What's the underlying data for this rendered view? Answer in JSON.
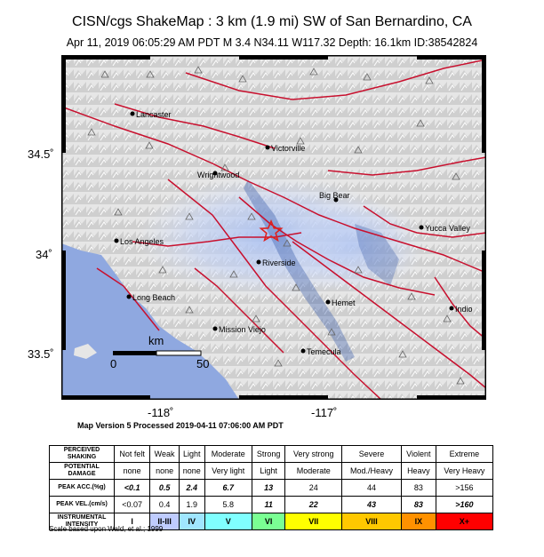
{
  "header": {
    "title": "CISN/cgs ShakeMap : 3 km (1.9 mi) SW of San Bernardino, CA",
    "subtitle": "Apr 11, 2019 06:05:29 AM PDT   M 3.4   N34.11 W117.32   Depth: 16.1km   ID:38542824"
  },
  "map": {
    "lat_labels": [
      "34.5˚",
      "34˚",
      "33.5˚"
    ],
    "lon_labels": [
      "-118˚",
      "-117˚"
    ],
    "cities": [
      {
        "name": "Lancaster"
      },
      {
        "name": "Victorville"
      },
      {
        "name": "Wrightwood"
      },
      {
        "name": "Big Bear"
      },
      {
        "name": "Los Angeles"
      },
      {
        "name": "Yucca Valley"
      },
      {
        "name": "Riverside"
      },
      {
        "name": "Long Beach"
      },
      {
        "name": "Hemet"
      },
      {
        "name": "Indio"
      },
      {
        "name": "Mission Viejo"
      },
      {
        "name": "Temecula"
      }
    ],
    "scale_bar": {
      "unit": "km",
      "start": "0",
      "end": "50"
    },
    "epicenter_marker": "star-icon",
    "colors": {
      "ocean": "#8fa8e0",
      "faults": "#c8102e",
      "epicenter": "#e0201c"
    }
  },
  "version_text": "Map Version 5 Processed 2019-04-11 07:06:00 AM PDT",
  "legend": {
    "rows": [
      {
        "label": "PERCEIVED SHAKING",
        "cells": [
          "Not felt",
          "Weak",
          "Light",
          "Moderate",
          "Strong",
          "Very strong",
          "Severe",
          "Violent",
          "Extreme"
        ]
      },
      {
        "label": "POTENTIAL DAMAGE",
        "cells": [
          "none",
          "none",
          "none",
          "Very light",
          "Light",
          "Moderate",
          "Mod./Heavy",
          "Heavy",
          "Very Heavy"
        ]
      },
      {
        "label": "PEAK ACC.(%g)",
        "cells": [
          "<0.1",
          "0.5",
          "2.4",
          "6.7",
          "13",
          "24",
          "44",
          "83",
          ">156"
        ]
      },
      {
        "label": "PEAK VEL.(cm/s)",
        "cells": [
          "<0.07",
          "0.4",
          "1.9",
          "5.8",
          "11",
          "22",
          "43",
          "83",
          ">160"
        ]
      },
      {
        "label": "INSTRUMENTAL INTENSITY",
        "cells": [
          "I",
          "II-III",
          "IV",
          "V",
          "VI",
          "VII",
          "VIII",
          "IX",
          "X+"
        ]
      }
    ],
    "intensity_colors": [
      "#ffffff",
      "#bfccff",
      "#a0e6ff",
      "#80ffff",
      "#7aff93",
      "#ffff00",
      "#ffc800",
      "#ff9100",
      "#ff0000"
    ]
  },
  "scale_note": "Scale based upon Wald, et al.; 1999"
}
